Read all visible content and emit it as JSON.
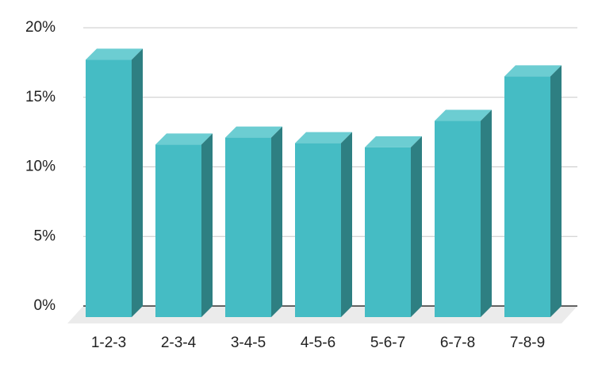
{
  "chart_data": {
    "type": "bar3d",
    "categories": [
      "1-2-3",
      "2-3-4",
      "3-4-5",
      "4-5-6",
      "5-6-7",
      "6-7-8",
      "7-8-9"
    ],
    "values": [
      18.5,
      12.4,
      12.9,
      12.5,
      12.2,
      14.1,
      17.3
    ],
    "color": "#45bcc4",
    "ylim": [
      0,
      20
    ],
    "yticks": [
      {
        "value": 0,
        "label": "0%"
      },
      {
        "value": 5,
        "label": "5%"
      },
      {
        "value": 10,
        "label": "10%"
      },
      {
        "value": 15,
        "label": "15%"
      },
      {
        "value": 20,
        "label": "20%"
      }
    ],
    "grid": true
  }
}
